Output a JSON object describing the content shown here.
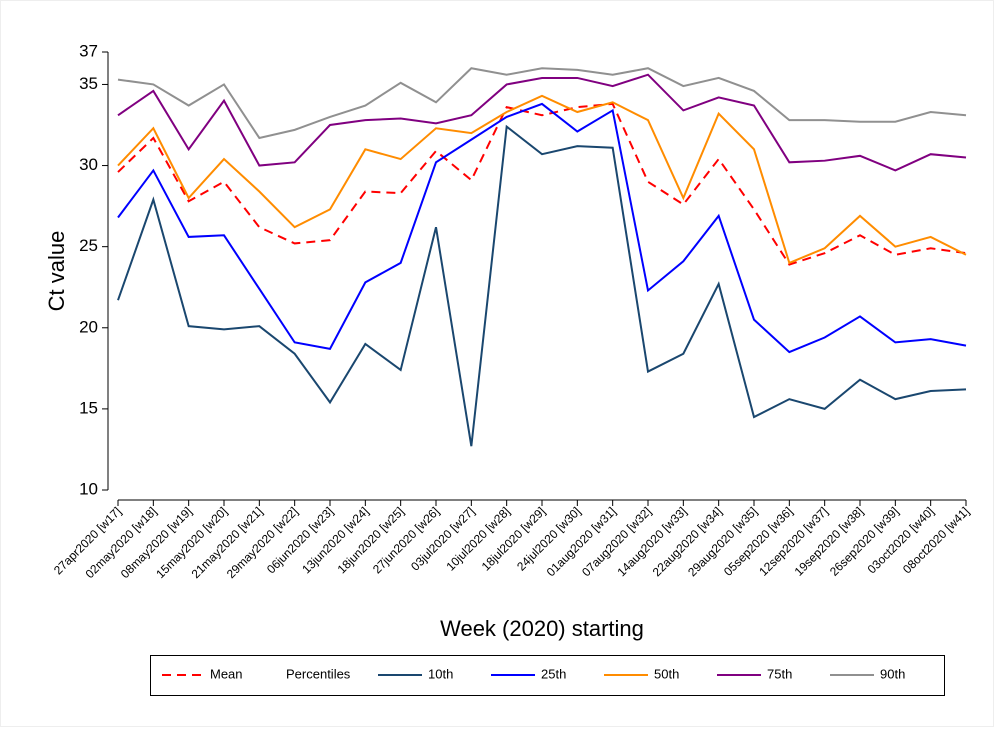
{
  "chart_data": {
    "type": "line",
    "y_label": "Ct value",
    "x_label": "Week (2020) starting",
    "legend_group_label": "Percentiles",
    "categories": [
      "27apr2020 [w17]",
      "02may2020 [w18]",
      "08may2020 [w19]",
      "15may2020 [w20]",
      "21may2020 [w21]",
      "29may2020 [w22]",
      "06jun2020 [w23]",
      "13jun2020 [w24]",
      "18jun2020 [w25]",
      "27jun2020 [w26]",
      "03jul2020 [w27]",
      "10jul2020 [w28]",
      "18jul2020 [w29]",
      "24jul2020 [w30]",
      "01aug2020 [w31]",
      "07aug2020 [w32]",
      "14aug2020 [w33]",
      "22aug2020 [w34]",
      "29aug2020 [w35]",
      "05sep2020 [w36]",
      "12sep2020 [w37]",
      "19sep2020 [w38]",
      "26sep2020 [w39]",
      "03oct2020 [w40]",
      "08oct2020 [w41]"
    ],
    "series": [
      {
        "name": "Mean",
        "color": "#ff0000",
        "dashed": true,
        "values": [
          29.6,
          31.7,
          27.8,
          29.0,
          26.2,
          25.2,
          25.4,
          28.4,
          28.3,
          30.9,
          29.1,
          33.6,
          33.1,
          33.6,
          33.8,
          29.0,
          27.6,
          30.4,
          27.3,
          23.9,
          24.6,
          25.7,
          24.5,
          24.9,
          24.6
        ]
      },
      {
        "name": "10th",
        "color": "#1a476f",
        "values": [
          21.7,
          27.9,
          20.1,
          19.9,
          20.1,
          18.4,
          15.4,
          19.0,
          17.4,
          26.2,
          12.7,
          32.4,
          30.7,
          31.2,
          31.1,
          17.3,
          18.4,
          22.7,
          14.5,
          15.6,
          15.0,
          16.8,
          15.6,
          16.1,
          16.2
        ]
      },
      {
        "name": "25th",
        "color": "#0000ff",
        "values": [
          26.8,
          29.7,
          25.6,
          25.7,
          22.4,
          19.1,
          18.7,
          22.8,
          24.0,
          30.2,
          31.6,
          33.0,
          33.8,
          32.1,
          33.4,
          22.3,
          24.1,
          26.9,
          20.5,
          18.5,
          19.4,
          20.7,
          19.1,
          19.3,
          18.9
        ]
      },
      {
        "name": "50th",
        "color": "#ff8c00",
        "values": [
          30.0,
          32.3,
          28.0,
          30.4,
          28.4,
          26.2,
          27.3,
          31.0,
          30.4,
          32.3,
          32.0,
          33.3,
          34.3,
          33.3,
          33.9,
          32.8,
          28.0,
          33.2,
          31.0,
          24.0,
          24.9,
          26.9,
          25.0,
          25.6,
          24.5
        ]
      },
      {
        "name": "75th",
        "color": "#800080",
        "values": [
          33.1,
          34.6,
          31.0,
          34.0,
          30.0,
          30.2,
          32.5,
          32.8,
          32.9,
          32.6,
          33.1,
          35.0,
          35.4,
          35.4,
          34.9,
          35.6,
          33.4,
          34.2,
          33.7,
          30.2,
          30.3,
          30.6,
          29.7,
          30.7,
          30.5
        ]
      },
      {
        "name": "90th",
        "color": "#909090",
        "values": [
          35.3,
          35.0,
          33.7,
          35.0,
          31.7,
          32.2,
          33.0,
          33.7,
          35.1,
          33.9,
          36.0,
          35.6,
          36.0,
          35.9,
          35.6,
          36.0,
          34.9,
          35.4,
          34.6,
          32.8,
          32.8,
          32.7,
          32.7,
          33.3,
          33.1
        ]
      }
    ],
    "ylim": [
      10,
      37
    ],
    "yticks": [
      10,
      15,
      20,
      25,
      30,
      35,
      37
    ],
    "legend_position": "bottom"
  }
}
